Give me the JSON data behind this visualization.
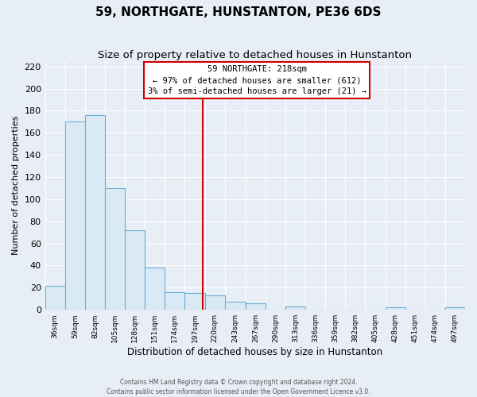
{
  "title": "59, NORTHGATE, HUNSTANTON, PE36 6DS",
  "subtitle": "Size of property relative to detached houses in Hunstanton",
  "xlabel": "Distribution of detached houses by size in Hunstanton",
  "ylabel": "Number of detached properties",
  "footer1": "Contains HM Land Registry data © Crown copyright and database right 2024.",
  "footer2": "Contains public sector information licensed under the Open Government Licence v3.0.",
  "bin_labels": [
    "36sqm",
    "59sqm",
    "82sqm",
    "105sqm",
    "128sqm",
    "151sqm",
    "174sqm",
    "197sqm",
    "220sqm",
    "243sqm",
    "267sqm",
    "290sqm",
    "313sqm",
    "336sqm",
    "359sqm",
    "382sqm",
    "405sqm",
    "428sqm",
    "451sqm",
    "474sqm",
    "497sqm"
  ],
  "bar_values": [
    22,
    170,
    176,
    110,
    72,
    38,
    16,
    15,
    13,
    7,
    6,
    0,
    3,
    0,
    0,
    0,
    0,
    2,
    0,
    0,
    2
  ],
  "bin_edges": [
    36,
    59,
    82,
    105,
    128,
    151,
    174,
    197,
    220,
    243,
    267,
    290,
    313,
    336,
    359,
    382,
    405,
    428,
    451,
    474,
    497,
    520
  ],
  "highlight_value": 218,
  "bar_face_color": "#daeaf5",
  "bar_edge_color": "#6baed6",
  "highlight_line_color": "#cc0000",
  "annotation_text_line1": "59 NORTHGATE: 218sqm",
  "annotation_text_line2": "← 97% of detached houses are smaller (612)",
  "annotation_text_line3": "3% of semi-detached houses are larger (21) →",
  "annotation_box_facecolor": "#ffffff",
  "annotation_box_edgecolor": "#cc0000",
  "ylim": [
    0,
    225
  ],
  "yticks": [
    0,
    20,
    40,
    60,
    80,
    100,
    120,
    140,
    160,
    180,
    200,
    220
  ],
  "background_color": "#e8eef5",
  "grid_color": "#ffffff",
  "title_fontsize": 11,
  "subtitle_fontsize": 9.5,
  "figsize": [
    6.0,
    5.0
  ],
  "dpi": 100
}
